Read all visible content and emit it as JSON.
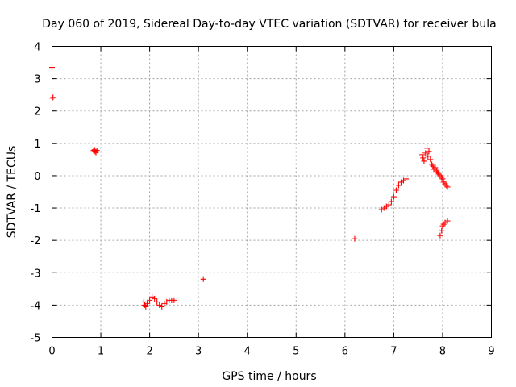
{
  "chart_data": {
    "type": "scatter",
    "title": "Day 060 of 2019, Sidereal Day-to-day VTEC variation (SDTVAR) for receiver bula",
    "xlabel": "GPS time / hours",
    "ylabel": "SDTVAR / TECUs",
    "xlim": [
      0,
      9
    ],
    "ylim": [
      -5,
      4
    ],
    "xticks": [
      0,
      1,
      2,
      3,
      4,
      5,
      6,
      7,
      8,
      9
    ],
    "yticks": [
      -5,
      -4,
      -3,
      -2,
      -1,
      0,
      1,
      2,
      3,
      4
    ],
    "grid": true,
    "marker": "plus",
    "color": "#ff0000",
    "series": [
      {
        "name": "SDTVAR",
        "x": [
          0.0,
          0.0,
          0.02,
          0.85,
          0.88,
          0.9,
          0.92,
          0.87,
          1.88,
          1.9,
          1.92,
          1.95,
          2.0,
          2.05,
          2.1,
          2.15,
          2.2,
          2.25,
          2.3,
          2.35,
          2.4,
          2.45,
          2.5,
          3.1,
          6.2,
          6.75,
          6.8,
          6.85,
          6.9,
          6.95,
          7.0,
          7.05,
          7.1,
          7.15,
          7.2,
          7.25,
          7.58,
          7.6,
          7.62,
          7.65,
          7.68,
          7.7,
          7.72,
          7.75,
          7.78,
          7.8,
          7.82,
          7.85,
          7.88,
          7.9,
          7.92,
          7.95,
          7.98,
          8.0,
          8.02,
          8.05,
          8.08,
          8.1,
          7.95,
          7.98,
          8.0,
          8.02,
          8.05,
          8.1
        ],
        "y": [
          3.35,
          2.4,
          2.42,
          0.78,
          0.75,
          0.72,
          0.78,
          0.8,
          -3.9,
          -4.0,
          -4.05,
          -3.95,
          -3.85,
          -3.75,
          -3.8,
          -3.9,
          -4.0,
          -4.05,
          -3.95,
          -3.9,
          -3.85,
          -3.85,
          -3.85,
          -3.2,
          -1.95,
          -1.05,
          -1.0,
          -0.95,
          -0.9,
          -0.8,
          -0.65,
          -0.45,
          -0.3,
          -0.2,
          -0.15,
          -0.1,
          0.65,
          0.55,
          0.45,
          0.7,
          0.85,
          0.6,
          0.75,
          0.5,
          0.35,
          0.3,
          0.2,
          0.25,
          0.15,
          0.1,
          0.05,
          0.0,
          -0.05,
          -0.1,
          -0.2,
          -0.25,
          -0.3,
          -0.35,
          -1.85,
          -1.7,
          -1.55,
          -1.5,
          -1.45,
          -1.4
        ]
      }
    ]
  }
}
